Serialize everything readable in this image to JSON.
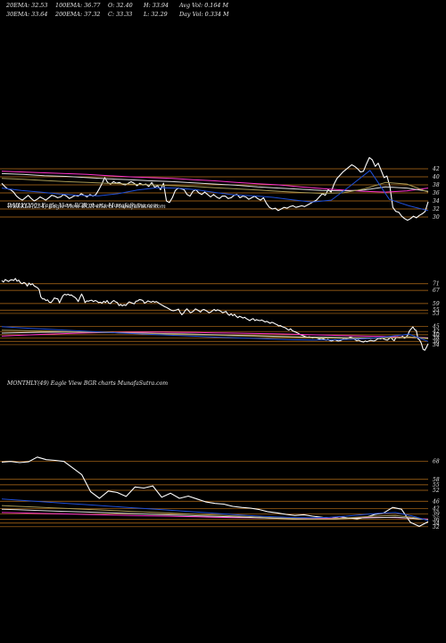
{
  "header": {
    "ema20": "20EMA: 32.53",
    "ema100": "100EMA: 36.77",
    "open": "O: 32.40",
    "high": "H: 33.94",
    "avgvol": "Avg Vol: 0.164  M",
    "ema30": "30EMA: 33.64",
    "ema200": "200EMA: 37.32",
    "close": "C: 33.33",
    "low": "L: 32.29",
    "dayvol": "Day Vol: 0.334  M"
  },
  "colors": {
    "background": "#000000",
    "grid": "#b8701a",
    "price": "#ffffff",
    "ema_fast": "#1f4fd8",
    "ema_magenta": "#ff33cc",
    "ema_white": "#dddddd",
    "ema_olive": "#a89a55"
  },
  "chart_data": [
    {
      "type": "line",
      "title": "DAILY(250) Eagle  View  BGR charts MunafaSutra.com",
      "ylim": [
        28,
        48
      ],
      "yticks": [
        42,
        40,
        38,
        36,
        34,
        32,
        30
      ],
      "series": [
        {
          "role": "price",
          "values": [
            38.4,
            37.6,
            37,
            36.8,
            36.2,
            35.2,
            34.6,
            34.2,
            34.8,
            35.4,
            34.6,
            34,
            34.4,
            35,
            34.6,
            34.2,
            34.8,
            35.4,
            35.2,
            34.8,
            35,
            35.6,
            35.2,
            34.6,
            35,
            35.4,
            35.2,
            35.8,
            35.4,
            35,
            35.6,
            35.2,
            35.6,
            36.8,
            38.2,
            39.8,
            38.6,
            38.2,
            38.8,
            38.4,
            38.6,
            38.2,
            38,
            38.4,
            38.8,
            38.4,
            37.8,
            38.4,
            38,
            38.2,
            37.6,
            38.6,
            37.4,
            37.8,
            36.8,
            38.4,
            34,
            33.6,
            34.8,
            36.6,
            37.2,
            37,
            36.8,
            35.6,
            35.2,
            36.4,
            36.8,
            36,
            35.6,
            36.2,
            35.6,
            35,
            35.6,
            35,
            34.6,
            35.2,
            35.2,
            34.6,
            34.8,
            35.4,
            35.6,
            34.8,
            35.2,
            35,
            34.4,
            34.8,
            35.2,
            34.6,
            34.2,
            34.8,
            33.4,
            32.4,
            32,
            32.2,
            31.6,
            32,
            32.4,
            32.2,
            32.6,
            32.8,
            32.4,
            32.6,
            32.8,
            32.6,
            33,
            33.4,
            33.8,
            34.2,
            35,
            35.8,
            35.4,
            36.8,
            36.2,
            38.2,
            39.6,
            40.4,
            41.2,
            41.8,
            42.4,
            43,
            42.6,
            42,
            41.2,
            41.4,
            43.2,
            44.8,
            44.2,
            42.6,
            43.4,
            41.6,
            39.8,
            40.2,
            37.6,
            32.4,
            31.4,
            31.2,
            30.2,
            29.6,
            29.2,
            29.6,
            30.2,
            29.8,
            30.4,
            30.8,
            31.4,
            33.8
          ]
        },
        {
          "role": "ema",
          "color": "#ff33cc",
          "values": [
            41.4,
            41.2,
            41,
            40.8,
            40.6,
            40.3,
            40,
            39.8,
            39.6,
            39.3,
            39,
            38.6,
            38.3,
            38,
            37.5,
            37.1,
            36.7,
            36.4,
            36.2,
            36.5,
            37.2
          ]
        },
        {
          "role": "ema",
          "color": "#dddddd",
          "values": [
            40.8,
            40.6,
            40.3,
            40.1,
            39.8,
            39.5,
            39.3,
            39,
            38.8,
            38.5,
            38.2,
            37.9,
            37.5,
            37.2,
            36.9,
            36.6,
            36.5,
            36.7,
            37.5,
            37.2,
            36.4
          ]
        },
        {
          "role": "ema",
          "color": "#a89a55",
          "values": [
            39.6,
            39.4,
            39.1,
            38.8,
            38.6,
            38.4,
            38.2,
            38,
            37.8,
            37.6,
            37.3,
            37,
            36.7,
            36.4,
            36.1,
            35.9,
            36,
            37,
            38.6,
            38.2,
            36.2
          ]
        },
        {
          "role": "ema",
          "color": "#1f4fd8",
          "values": [
            37.2,
            36.6,
            36.2,
            35.7,
            35.4,
            35.3,
            35.8,
            36.7,
            37.3,
            37.2,
            36.8,
            36.1,
            35.5,
            35.3,
            34.9,
            34.3,
            33.7,
            34.2,
            37.8,
            41.6,
            34.4,
            32.8,
            31.6
          ]
        }
      ]
    },
    {
      "type": "line",
      "title": "WEEKLY(254) Eagle  View  BGR charts MunafaSutra.com",
      "ylim": [
        28,
        79
      ],
      "yticks": [
        71,
        67,
        59,
        55,
        53,
        45,
        42,
        40,
        38,
        36,
        34
      ],
      "series": [
        {
          "role": "price",
          "values": [
            73,
            72,
            73.6,
            73,
            72.4,
            73.2,
            73.4,
            73,
            74.2,
            72.6,
            73.2,
            71.6,
            71,
            71.8,
            71.2,
            69.6,
            71.4,
            70.4,
            71,
            69.8,
            69.2,
            68.6,
            67.4,
            63,
            61.8,
            61.8,
            60.8,
            61.2,
            59.8,
            59.6,
            60.8,
            62.4,
            62,
            61.8,
            59.4,
            61.8,
            63.8,
            64.6,
            64.2,
            64.6,
            64,
            64.2,
            63.4,
            62.8,
            61.8,
            60.2,
            62.6,
            64.8,
            62.8,
            59.6,
            60.6,
            60.4,
            60.8,
            61,
            60.2,
            60.8,
            60.4,
            59.6,
            59.8,
            59.2,
            60.4,
            59.6,
            60.8,
            59.2,
            59,
            60.2,
            60.8,
            60,
            59.6,
            57.8,
            58.4,
            57.6,
            58.2,
            57.8,
            59,
            60,
            59.6,
            59.2,
            58.8,
            60.4,
            60.6,
            61.4,
            61.2,
            60.8,
            59.2,
            59.8,
            60.6,
            60.2,
            59.8,
            60.4,
            59.8,
            60.2,
            59.6,
            58.8,
            58.2,
            57.6,
            57,
            56.6,
            56,
            55.4,
            54.8,
            54.6,
            54.8,
            55.2,
            55.6,
            53.6,
            52.2,
            53.2,
            54.8,
            55.8,
            54.6,
            53.4,
            53.8,
            54.6,
            55.8,
            55.2,
            54.6,
            53.8,
            55,
            55.4,
            54.8,
            54.2,
            53.4,
            53.8,
            54.6,
            55.4,
            54.6,
            55.2,
            54.8,
            54.2,
            53.4,
            53.8,
            54.2,
            52.6,
            51.8,
            52.8,
            51.6,
            52.4,
            51.2,
            50.4,
            51.2,
            50.8,
            50.2,
            50.6,
            49.8,
            49.2,
            48.6,
            49.4,
            49.8,
            48.6,
            49.2,
            48.8,
            48.6,
            49,
            48.4,
            47.8,
            48.2,
            47.6,
            47,
            47.6,
            47.2,
            46.6,
            46.2,
            45.4,
            45.6,
            45,
            44.6,
            44.2,
            43.4,
            42.8,
            43.6,
            42.6,
            42,
            41.6,
            41.2,
            40.6,
            40,
            39.6,
            39.2,
            38.8,
            38.4,
            38.8,
            38.4,
            38,
            38.6,
            38.2,
            37.8,
            37.4,
            37.8,
            37.6,
            37.2,
            36.8,
            37.2,
            36.6,
            36.2,
            36.6,
            37,
            36.6,
            36.2,
            36.4,
            36.8,
            37.4,
            37.2,
            37.6,
            38,
            38.6,
            38.4,
            37.8,
            37,
            36.4,
            36.8,
            36.2,
            35.8,
            35.6,
            36.2,
            35.8,
            36.2,
            36.6,
            36.4,
            36.2,
            36.6,
            37.4,
            37.8,
            37.6,
            38,
            37.4,
            37,
            36.8,
            37.6,
            38.6,
            37.2,
            36.4,
            38.2,
            38.8,
            38.2,
            38.6,
            39.2,
            38,
            38.6,
            39.8,
            42.4,
            43.6,
            44.8,
            43.2,
            42.6,
            37.6,
            36.8,
            34.8,
            31.2,
            30.6,
            32.4,
            34.6
          ]
        },
        {
          "role": "ema",
          "color": "#ff33cc",
          "values": [
            39.2,
            39.7,
            40.2,
            40.6,
            41,
            41.3,
            41.5,
            41.6,
            41.6,
            41.5,
            41.4,
            41.2,
            41,
            40.8,
            40.6,
            40.3,
            40,
            39.7,
            39.4,
            39.1,
            38.9,
            38.6,
            38.2
          ]
        },
        {
          "role": "ema",
          "color": "#dddddd",
          "values": [
            41,
            41.3,
            41.5,
            41.6,
            41.6,
            41.5,
            41.3,
            41.1,
            40.8,
            40.6,
            40.3,
            40,
            39.7,
            39.4,
            39.1,
            38.8,
            38.6,
            38.4,
            38.2,
            38.1,
            38.2,
            38.6,
            38
          ]
        },
        {
          "role": "ema",
          "color": "#a89a55",
          "values": [
            42.8,
            42.6,
            42.4,
            42.1,
            41.8,
            41.5,
            41.2,
            40.9,
            40.6,
            40.3,
            40,
            39.7,
            39.4,
            39.1,
            38.8,
            38.5,
            38.2,
            38,
            37.8,
            37.8,
            38.2,
            38.8,
            37.6
          ]
        },
        {
          "role": "ema",
          "color": "#1f4fd8",
          "values": [
            45,
            44.2,
            43.6,
            43,
            42.4,
            41.8,
            41.2,
            40.6,
            40.1,
            39.6,
            39.1,
            38.6,
            38.2,
            37.8,
            37.4,
            37,
            36.8,
            36.9,
            37.2,
            37.8,
            39,
            40.4,
            36
          ]
        }
      ]
    },
    {
      "type": "line",
      "title": "MONTHLY(49) Eagle  View  BGR charts MunafaSutra.com",
      "ylim": [
        28,
        76
      ],
      "yticks": [
        68,
        58,
        55,
        52,
        46,
        42,
        39,
        36,
        34,
        32
      ],
      "series": [
        {
          "role": "price",
          "values": [
            67.5,
            67.8,
            67.2,
            67.6,
            70.2,
            68.8,
            68.4,
            67.8,
            64.2,
            60.6,
            51.2,
            47.6,
            51.6,
            50.8,
            48.6,
            53.8,
            53.2,
            54.4,
            48.2,
            50.4,
            47.6,
            48.8,
            47.2,
            45.6,
            44.8,
            44.4,
            43.2,
            42.6,
            42.2,
            41.4,
            40.2,
            39.6,
            38.8,
            38.2,
            38.6,
            37.8,
            37.2,
            36.4,
            37.6,
            36.8,
            36.4,
            37.2,
            38.8,
            39.6,
            42.6,
            41.6,
            34.4,
            32.2,
            34.8
          ]
        },
        {
          "role": "ema",
          "color": "#ff33cc",
          "values": [
            39.8,
            39.6,
            39.4,
            39.2,
            39,
            38.8,
            38.6,
            38.4,
            38.2,
            38,
            37.8,
            37.6,
            37.4,
            37.2,
            37,
            36.9,
            36.8,
            36.7,
            36.6,
            36.5,
            36.6,
            36.8,
            37,
            37.1,
            37,
            36.6,
            36.2
          ]
        },
        {
          "role": "ema",
          "color": "#dddddd",
          "values": [
            41.6,
            41.3,
            41,
            40.7,
            40.4,
            40.1,
            39.8,
            39.5,
            39.2,
            38.9,
            38.6,
            38.3,
            38,
            37.7,
            37.4,
            37.1,
            36.8,
            36.5,
            36.3,
            36.2,
            36.3,
            36.5,
            36.8,
            37,
            37.2,
            36.6,
            35.9
          ]
        },
        {
          "role": "ema",
          "color": "#a89a55",
          "values": [
            43.6,
            43.2,
            42.8,
            42.4,
            42,
            41.6,
            41.2,
            40.8,
            40.4,
            40,
            39.6,
            39.2,
            38.8,
            38.4,
            38,
            37.6,
            37.2,
            36.8,
            36.5,
            36.3,
            36.4,
            36.8,
            37.4,
            37.9,
            38.2,
            37.2,
            35.8
          ]
        },
        {
          "role": "ema",
          "color": "#1f4fd8",
          "values": [
            47.2,
            46.6,
            46,
            45.4,
            44.8,
            44.2,
            43.6,
            43,
            42.4,
            41.8,
            41.2,
            40.6,
            40,
            39.4,
            38.8,
            38.2,
            37.7,
            37.3,
            37,
            36.9,
            37.2,
            37.8,
            38.7,
            39.4,
            39.8,
            38,
            35.4
          ]
        }
      ]
    }
  ]
}
